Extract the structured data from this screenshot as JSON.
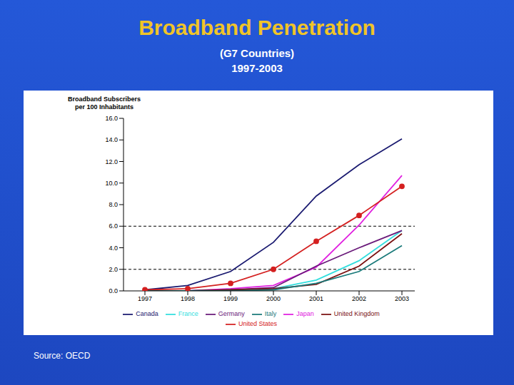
{
  "chart_data": {
    "type": "line",
    "title": "Broadband Penetration",
    "subtitle": [
      "(G7 Countries)",
      "1997-2003"
    ],
    "y_label": "Broadband Subscribers\nper 100 Inhabitants",
    "source": "Source: OECD",
    "categories": [
      "1997",
      "1998",
      "1999",
      "2000",
      "2001",
      "2002",
      "2003"
    ],
    "ylim": [
      0,
      16
    ],
    "yticks": [
      {
        "value": 0,
        "label": "0.0"
      },
      {
        "value": 2,
        "label": "2.0"
      },
      {
        "value": 4,
        "label": "4.0"
      },
      {
        "value": 6,
        "label": "6.0"
      },
      {
        "value": 8,
        "label": "8.0"
      },
      {
        "value": 10,
        "label": "10.0"
      },
      {
        "value": 12,
        "label": "12.0"
      },
      {
        "value": 14,
        "label": "14.0"
      },
      {
        "value": 16,
        "label": "16.0"
      }
    ],
    "reference_lines": [
      2,
      6
    ],
    "grid": false,
    "legend": "bottom",
    "series": [
      {
        "name": "Canada",
        "color": "#1a1a70",
        "values": [
          0.1,
          0.5,
          1.8,
          4.5,
          8.8,
          11.7,
          14.1
        ]
      },
      {
        "name": "Japan",
        "color": "#e020e0",
        "values": [
          0.0,
          0.0,
          0.2,
          0.5,
          2.2,
          6.1,
          10.7
        ]
      },
      {
        "name": "United States",
        "color": "#d42020",
        "marker": "circle",
        "values": [
          0.1,
          0.2,
          0.7,
          2.0,
          4.6,
          7.0,
          9.7
        ]
      },
      {
        "name": "France",
        "color": "#33dede",
        "values": [
          0.0,
          0.0,
          0.1,
          0.2,
          1.0,
          2.8,
          5.6
        ]
      },
      {
        "name": "Germany",
        "color": "#6a1a7a",
        "values": [
          0.0,
          0.0,
          0.1,
          0.3,
          2.3,
          4.0,
          5.6
        ]
      },
      {
        "name": "United Kingdom",
        "color": "#7a1010",
        "values": [
          0.0,
          0.0,
          0.1,
          0.2,
          0.6,
          2.3,
          5.3
        ]
      },
      {
        "name": "Italy",
        "color": "#1a7a7a",
        "values": [
          0.0,
          0.0,
          0.0,
          0.1,
          0.7,
          1.8,
          4.2
        ]
      }
    ]
  }
}
